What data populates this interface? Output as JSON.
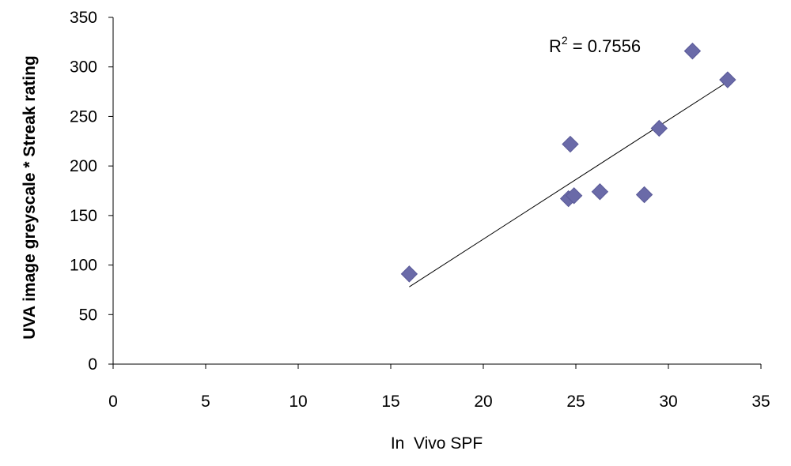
{
  "chart_data": {
    "type": "scatter",
    "title": "",
    "xlabel": "In  Vivo SPF",
    "ylabel": "UVA image greyscale * Streak rating",
    "xlim": [
      0,
      35
    ],
    "ylim": [
      0,
      350
    ],
    "x_ticks": [
      0,
      5,
      10,
      15,
      20,
      25,
      30,
      35
    ],
    "y_ticks": [
      0,
      50,
      100,
      150,
      200,
      250,
      300,
      350
    ],
    "grid": false,
    "legend": "none",
    "marker": "diamond",
    "marker_color": "#6a6aa8",
    "points": [
      {
        "x": 16.0,
        "y": 91
      },
      {
        "x": 24.6,
        "y": 167
      },
      {
        "x": 24.7,
        "y": 222
      },
      {
        "x": 24.9,
        "y": 170
      },
      {
        "x": 26.3,
        "y": 174
      },
      {
        "x": 28.7,
        "y": 171
      },
      {
        "x": 29.5,
        "y": 238
      },
      {
        "x": 31.3,
        "y": 316
      },
      {
        "x": 33.2,
        "y": 287
      }
    ],
    "trendline": {
      "x": [
        16.0,
        33.2
      ],
      "y": [
        78,
        285
      ]
    },
    "annotation": {
      "base": "R",
      "superscript": "2",
      "rest": " = 0.7556"
    }
  }
}
